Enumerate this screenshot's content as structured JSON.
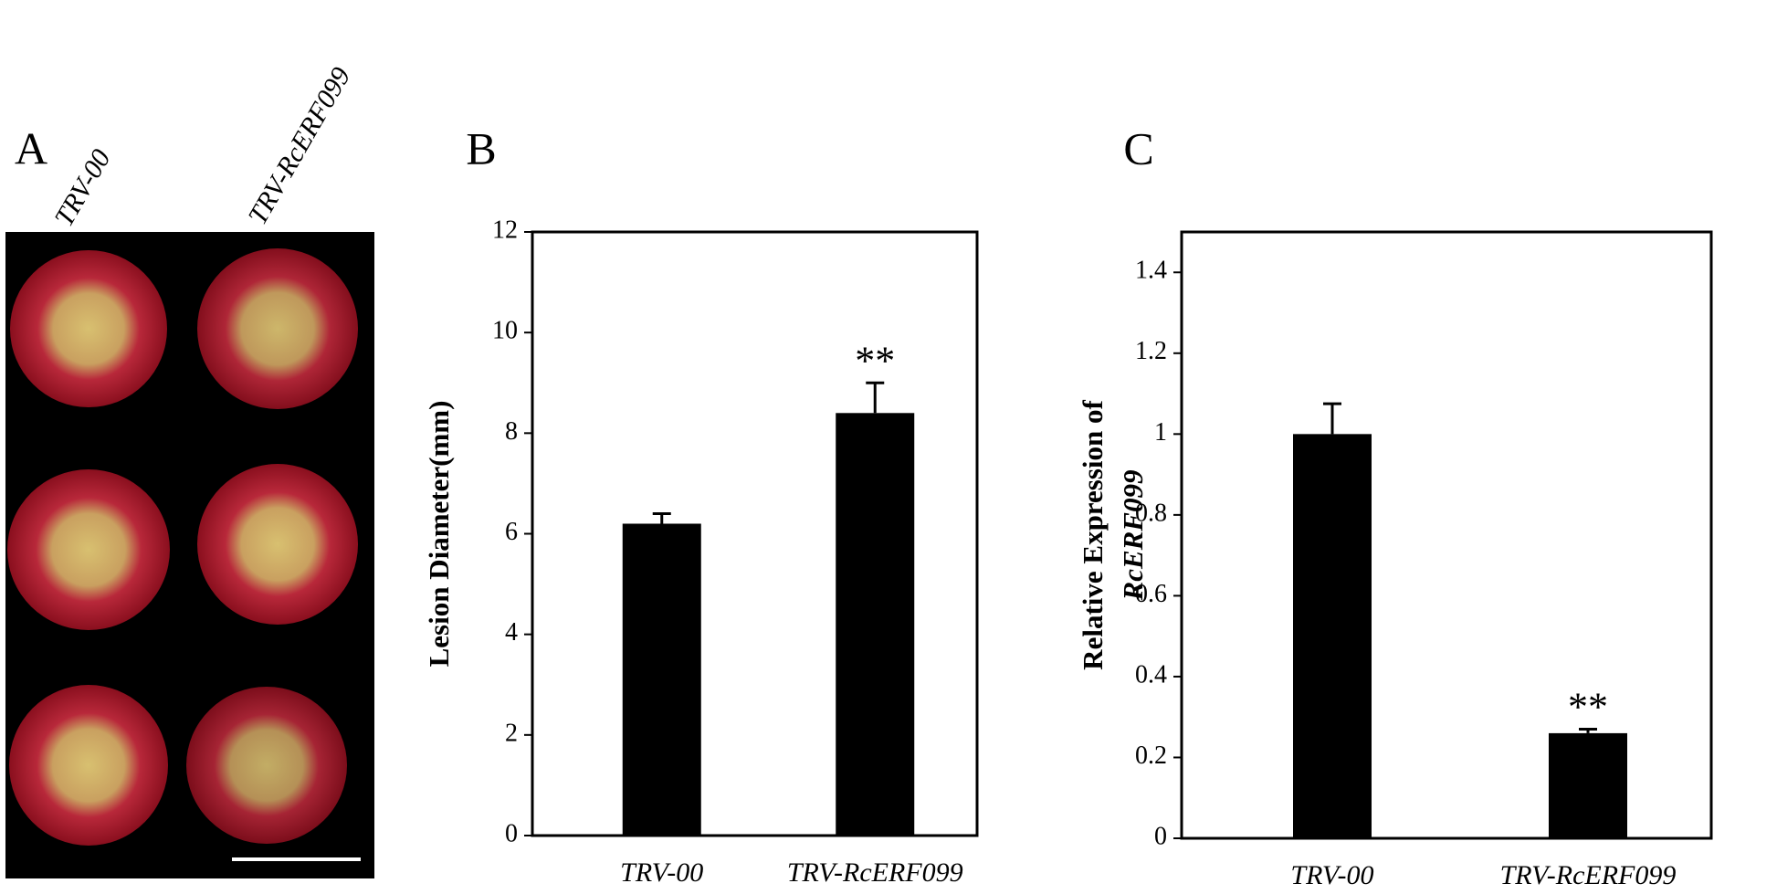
{
  "photo_panel": {
    "label": "A",
    "columns": [
      "TRV-00",
      "TRV-RcERF099"
    ]
  },
  "chart_data": [
    {
      "type": "bar",
      "panel_label": "B",
      "ylabel": [
        "Lesion Diameter(mm)"
      ],
      "categories": [
        "TRV-00",
        "TRV-RcERF099"
      ],
      "values": [
        6.2,
        8.4
      ],
      "errors": [
        0.2,
        0.6
      ],
      "annotations": [
        null,
        "**"
      ],
      "color": "#000000",
      "ylim": [
        0,
        12
      ],
      "yticks": [
        0,
        2,
        4,
        6,
        8,
        10,
        12
      ]
    },
    {
      "type": "bar",
      "panel_label": "C",
      "ylabel": [
        "Relative Expression of",
        "RcERF099"
      ],
      "categories": [
        "TRV-00",
        "TRV-RcERF099"
      ],
      "values": [
        1.0,
        0.26
      ],
      "errors": [
        0.075,
        0.01
      ],
      "annotations": [
        null,
        "**"
      ],
      "color": "#000000",
      "ylim": [
        0,
        1.5
      ],
      "yticks": [
        0,
        0.2,
        0.4,
        0.6,
        0.8,
        1,
        1.2,
        1.4
      ]
    }
  ]
}
